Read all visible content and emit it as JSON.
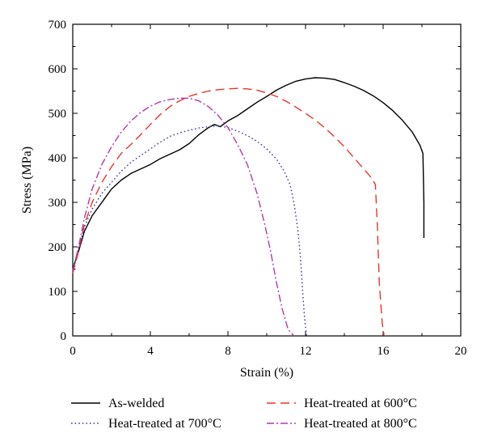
{
  "chart_data": {
    "type": "line",
    "xlabel": "Strain (%)",
    "ylabel": "Stress (MPa)",
    "xlim": [
      0,
      20
    ],
    "ylim": [
      0,
      700
    ],
    "xticks": [
      0,
      4,
      8,
      12,
      16,
      20
    ],
    "yticks": [
      0,
      100,
      200,
      300,
      400,
      500,
      600,
      700
    ],
    "grid": false,
    "legend_position": "bottom",
    "series": [
      {
        "name": "As-welded",
        "color": "#000000",
        "dash": "solid",
        "points": [
          [
            0,
            150
          ],
          [
            0.3,
            190
          ],
          [
            0.6,
            235
          ],
          [
            1,
            270
          ],
          [
            1.5,
            300
          ],
          [
            2,
            330
          ],
          [
            2.5,
            350
          ],
          [
            3,
            365
          ],
          [
            3.5,
            375
          ],
          [
            4,
            385
          ],
          [
            4.5,
            398
          ],
          [
            5,
            408
          ],
          [
            5.5,
            418
          ],
          [
            6,
            432
          ],
          [
            6.5,
            452
          ],
          [
            7,
            468
          ],
          [
            7.3,
            475
          ],
          [
            7.6,
            470
          ],
          [
            8,
            483
          ],
          [
            8.5,
            495
          ],
          [
            9,
            510
          ],
          [
            9.5,
            525
          ],
          [
            10,
            538
          ],
          [
            10.5,
            552
          ],
          [
            11,
            563
          ],
          [
            11.5,
            572
          ],
          [
            12,
            577
          ],
          [
            12.5,
            580
          ],
          [
            13,
            579
          ],
          [
            13.5,
            576
          ],
          [
            14,
            569
          ],
          [
            14.5,
            561
          ],
          [
            15,
            551
          ],
          [
            15.5,
            539
          ],
          [
            16,
            524
          ],
          [
            16.5,
            506
          ],
          [
            17,
            484
          ],
          [
            17.5,
            458
          ],
          [
            17.9,
            428
          ],
          [
            18.05,
            410
          ],
          [
            18.1,
            300
          ],
          [
            18.1,
            220
          ]
        ]
      },
      {
        "name": "Heat-treated at 600°C",
        "color": "#e8352c",
        "dash": "long-dash",
        "points": [
          [
            0,
            140
          ],
          [
            0.3,
            190
          ],
          [
            0.6,
            250
          ],
          [
            1,
            300
          ],
          [
            1.5,
            345
          ],
          [
            2,
            380
          ],
          [
            2.5,
            410
          ],
          [
            3,
            430
          ],
          [
            3.5,
            452
          ],
          [
            4,
            475
          ],
          [
            4.5,
            497
          ],
          [
            5,
            515
          ],
          [
            5.5,
            528
          ],
          [
            6,
            538
          ],
          [
            6.5,
            545
          ],
          [
            7,
            550
          ],
          [
            7.5,
            553
          ],
          [
            8,
            555
          ],
          [
            8.5,
            556
          ],
          [
            9,
            555
          ],
          [
            9.5,
            552
          ],
          [
            10,
            546
          ],
          [
            10.5,
            538
          ],
          [
            11,
            527
          ],
          [
            11.5,
            514
          ],
          [
            12,
            500
          ],
          [
            12.5,
            485
          ],
          [
            13,
            467
          ],
          [
            13.5,
            447
          ],
          [
            14,
            425
          ],
          [
            14.5,
            400
          ],
          [
            15,
            375
          ],
          [
            15.4,
            355
          ],
          [
            15.6,
            340
          ],
          [
            15.7,
            250
          ],
          [
            15.8,
            120
          ],
          [
            15.95,
            30
          ],
          [
            16.05,
            0
          ]
        ]
      },
      {
        "name": "Heat-treated at 700°C",
        "color": "#3a3aa0",
        "dash": "dotted",
        "points": [
          [
            0,
            150
          ],
          [
            0.3,
            195
          ],
          [
            0.6,
            245
          ],
          [
            1,
            285
          ],
          [
            1.5,
            320
          ],
          [
            2,
            345
          ],
          [
            2.5,
            370
          ],
          [
            3,
            390
          ],
          [
            3.5,
            405
          ],
          [
            4,
            420
          ],
          [
            4.5,
            435
          ],
          [
            5,
            448
          ],
          [
            5.5,
            456
          ],
          [
            6,
            462
          ],
          [
            6.5,
            467
          ],
          [
            7,
            470
          ],
          [
            7.5,
            472
          ],
          [
            8,
            468
          ],
          [
            8.5,
            460
          ],
          [
            9,
            450
          ],
          [
            9.5,
            437
          ],
          [
            10,
            420
          ],
          [
            10.5,
            397
          ],
          [
            10.9,
            370
          ],
          [
            11.2,
            340
          ],
          [
            11.4,
            300
          ],
          [
            11.6,
            240
          ],
          [
            11.75,
            170
          ],
          [
            11.85,
            100
          ],
          [
            11.95,
            40
          ],
          [
            12.05,
            0
          ]
        ]
      },
      {
        "name": "Heat-treated at 800°C",
        "color": "#b03aa8",
        "dash": "dash-dot",
        "points": [
          [
            0,
            145
          ],
          [
            0.3,
            200
          ],
          [
            0.6,
            265
          ],
          [
            1,
            330
          ],
          [
            1.5,
            385
          ],
          [
            2,
            425
          ],
          [
            2.5,
            458
          ],
          [
            3,
            483
          ],
          [
            3.5,
            502
          ],
          [
            4,
            516
          ],
          [
            4.5,
            526
          ],
          [
            5,
            531
          ],
          [
            5.5,
            534
          ],
          [
            6,
            534
          ],
          [
            6.5,
            528
          ],
          [
            7,
            515
          ],
          [
            7.5,
            495
          ],
          [
            8,
            468
          ],
          [
            8.5,
            430
          ],
          [
            9,
            385
          ],
          [
            9.5,
            320
          ],
          [
            9.9,
            250
          ],
          [
            10.2,
            190
          ],
          [
            10.5,
            120
          ],
          [
            10.8,
            60
          ],
          [
            11.1,
            15
          ],
          [
            11.4,
            0
          ]
        ]
      }
    ]
  }
}
